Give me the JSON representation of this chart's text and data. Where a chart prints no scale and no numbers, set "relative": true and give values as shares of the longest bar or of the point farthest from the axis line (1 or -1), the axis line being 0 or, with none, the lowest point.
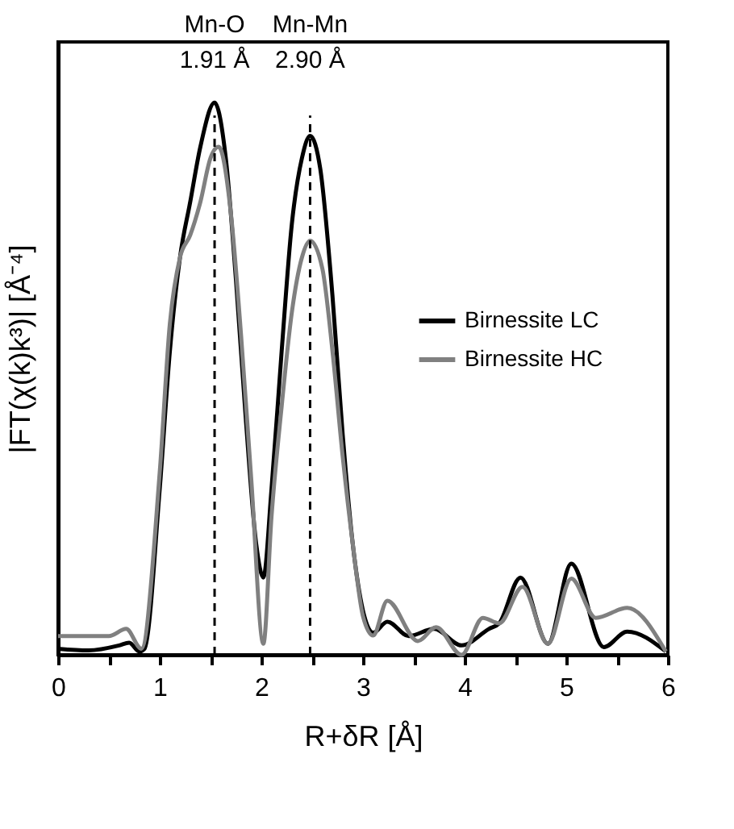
{
  "chart_data": {
    "type": "line",
    "relative": true,
    "xlabel": "R+δR [Å]",
    "ylabel": "|FT(χ(k)k³)| [Å⁻⁴]",
    "xlim": [
      0,
      6
    ],
    "xticks": [
      0,
      {
        "value": 0.5,
        "label": null
      },
      1,
      {
        "value": 1.5,
        "label": null
      },
      2,
      {
        "value": 2.5,
        "label": null
      },
      3,
      {
        "value": 3.5,
        "label": null
      },
      4,
      {
        "value": 4.5,
        "label": null
      },
      5,
      {
        "value": 5.5,
        "label": null
      },
      6
    ],
    "legend": "right",
    "line_style": "solid",
    "ref_lines": [
      {
        "axis": "x",
        "value": 1.54,
        "label": "Mn-O\n1.91 Å",
        "line_style": "dashed",
        "color": "#000000"
      },
      {
        "axis": "x",
        "value": 2.48,
        "label": "Mn-Mn\n2.90 Å",
        "line_style": "dashed",
        "color": "#000000"
      }
    ],
    "series": [
      {
        "name": "Birnessite LC",
        "color": "#000000",
        "x": [
          0,
          0.3,
          0.6,
          0.7,
          0.8,
          0.85,
          1.0,
          1.1,
          1.2,
          1.3,
          1.4,
          1.54,
          1.65,
          1.75,
          1.85,
          1.95,
          2.02,
          2.1,
          2.2,
          2.3,
          2.4,
          2.48,
          2.58,
          2.7,
          2.8,
          2.9,
          3.0,
          3.1,
          3.24,
          3.45,
          3.7,
          3.97,
          4.24,
          4.34,
          4.55,
          4.82,
          5.05,
          5.37,
          5.6,
          5.98
        ],
        "values": [
          0.011,
          0.008,
          0.017,
          0.022,
          0.006,
          0.011,
          0.3,
          0.55,
          0.72,
          0.82,
          0.92,
          1.0,
          0.9,
          0.68,
          0.42,
          0.2,
          0.14,
          0.3,
          0.55,
          0.78,
          0.9,
          0.94,
          0.88,
          0.65,
          0.4,
          0.2,
          0.08,
          0.04,
          0.06,
          0.034,
          0.047,
          0.017,
          0.047,
          0.057,
          0.14,
          0.02,
          0.165,
          0.014,
          0.042,
          0.006
        ]
      },
      {
        "name": "Birnessite HC",
        "color": "#808080",
        "x": [
          0,
          0.5,
          0.67,
          0.82,
          1.0,
          1.1,
          1.2,
          1.3,
          1.4,
          1.5,
          1.58,
          1.7,
          1.8,
          1.9,
          2.02,
          2.1,
          2.2,
          2.3,
          2.4,
          2.48,
          2.6,
          2.7,
          2.8,
          2.9,
          3.0,
          3.1,
          3.24,
          3.54,
          3.72,
          3.97,
          4.18,
          4.34,
          4.57,
          4.82,
          5.05,
          5.29,
          5.6,
          5.98
        ],
        "values": [
          0.034,
          0.034,
          0.047,
          0.011,
          0.33,
          0.6,
          0.72,
          0.76,
          0.82,
          0.9,
          0.92,
          0.8,
          0.58,
          0.32,
          0.02,
          0.25,
          0.45,
          0.62,
          0.72,
          0.75,
          0.7,
          0.55,
          0.36,
          0.2,
          0.07,
          0.035,
          0.098,
          0.025,
          0.05,
          0.0,
          0.067,
          0.057,
          0.123,
          0.02,
          0.138,
          0.067,
          0.085,
          0.006
        ]
      }
    ]
  }
}
